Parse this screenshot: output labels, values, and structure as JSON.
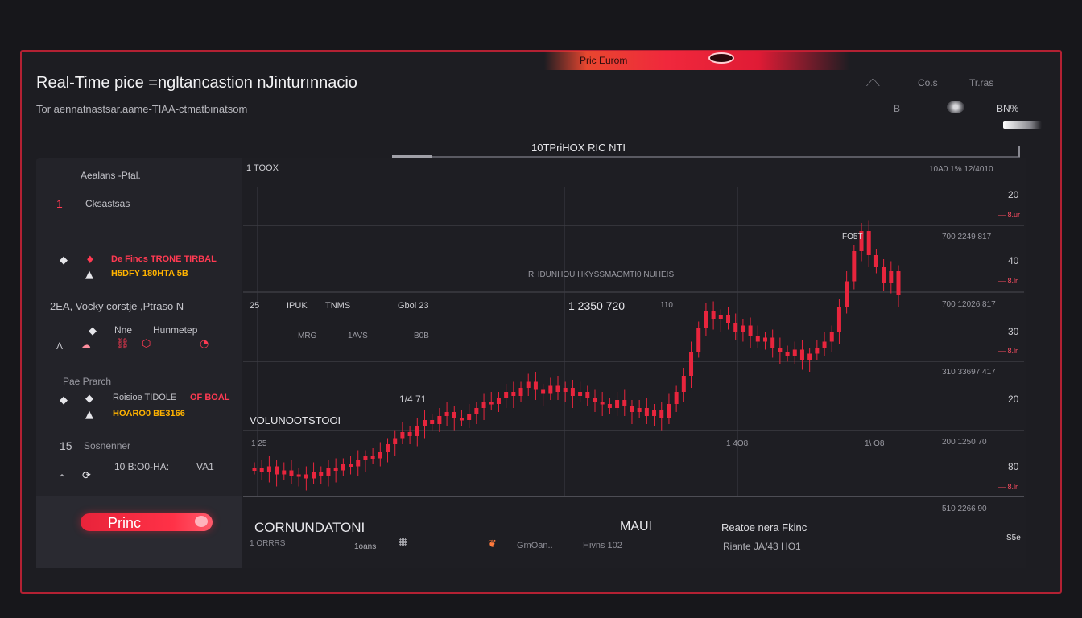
{
  "colors": {
    "accent": "#ff2f47",
    "frame": "#b32133",
    "panel": "#1e1e23",
    "warning": "#ffb300"
  },
  "top_badge": {
    "label": "Pric  Eurom"
  },
  "header": {
    "title": "Real-Time pice =ngltancastion  nJinturınnacio",
    "subtitle": "Tor aennatnastsar.aame-TIAA-ctmatbınatsom",
    "right_top": [
      "Co.s",
      "Tr.ras"
    ],
    "right_mid": [
      "B",
      "BN%"
    ]
  },
  "sidebar": {
    "section_title": "Aealans -Ptal.",
    "item_number": "1",
    "item_label": "Cksastsas",
    "alert1_red": "De Fincs  TRONE  TIRBAL",
    "alert1_yellow": "H5DFY  180HTA  5B",
    "row_label": "2EA, Vocky corstje ,Ptraso  N",
    "col_a": "Nne",
    "col_b": "Hunmetep",
    "section2_title": "Pae Prarch",
    "alert2_label": "Roisioe   TIDOLE",
    "alert2_red": "OF BOAL",
    "alert2_yellow": "HOARO0  BE3166",
    "count": "15",
    "count_label": "Sosnenner",
    "bottom_value": "10 B:O0-HA:",
    "bottom_right": "VA1",
    "button_label": "Princ"
  },
  "chart": {
    "title": "10TPriHOX  RIC   NTI",
    "top_left_label": "1 TOOX",
    "overlay_label": "RHDUNHOU  HKYSSMAOMTI0 NUHEIS",
    "mid_labels": [
      "25",
      "IPUK",
      "TNMS",
      "Gbol 23"
    ],
    "price_readout": "1 2350   720",
    "price_readout_small": "110",
    "row2_labels": [
      "MRG",
      "1AVS",
      "B0B"
    ],
    "cand_label": "1/4 71",
    "volume_label": "VOLUNOOTSTOOI",
    "lower_labels": [
      "1 25",
      "1 4O8",
      "1\\ O8"
    ],
    "peak_label": "FO5T",
    "right_axis": [
      {
        "top": "10A0   1%  12/4010",
        "mid": "20"
      },
      {
        "top": "700   2249 817",
        "mid": "40"
      },
      {
        "top": "700   12026 817",
        "mid": "30"
      },
      {
        "top": "310   33697 417",
        "mid": "20"
      },
      {
        "top": "200   1250   70",
        "mid": "80"
      },
      {
        "top": "510   2266   90",
        "mid": "S5e"
      }
    ],
    "right_red_marks": [
      "— 8.ur",
      "— 8.lr",
      "— 8.lr",
      "— 8.lr"
    ]
  },
  "chart_data": {
    "type": "line",
    "title": "10TPriHOX  RIC   NTI",
    "series": [
      {
        "values": [
          12,
          10,
          13,
          9,
          11,
          8,
          9,
          7,
          10,
          8,
          12,
          11,
          14,
          13,
          16,
          18,
          17,
          20,
          24,
          27,
          30,
          28,
          33,
          36,
          34,
          38,
          40,
          37,
          36,
          39,
          42,
          45,
          44,
          47,
          50,
          48,
          52,
          55,
          51,
          49,
          53,
          50,
          52,
          48,
          50,
          47,
          45,
          44,
          42,
          46,
          43,
          40,
          42,
          38,
          41,
          37,
          44,
          50,
          58,
          70,
          82,
          90,
          86,
          88,
          84,
          80,
          83,
          78,
          75,
          77,
          72,
          70,
          68,
          71,
          66,
          69,
          72,
          75,
          80,
          92,
          105,
          120,
          130,
          118,
          112,
          104,
          110,
          98
        ]
      }
    ]
  },
  "footer": {
    "left_title": "CORNUNDATONI",
    "left_sub": "1 ORRRS",
    "mid_sub": "1oans",
    "mid_title": "MAUI",
    "mid_small": "GmOan..",
    "mid_small2": "Hivns 102",
    "right_title": "Reatoe nera Fkinc",
    "right_sub": "Riante    JA/43    HO1"
  }
}
